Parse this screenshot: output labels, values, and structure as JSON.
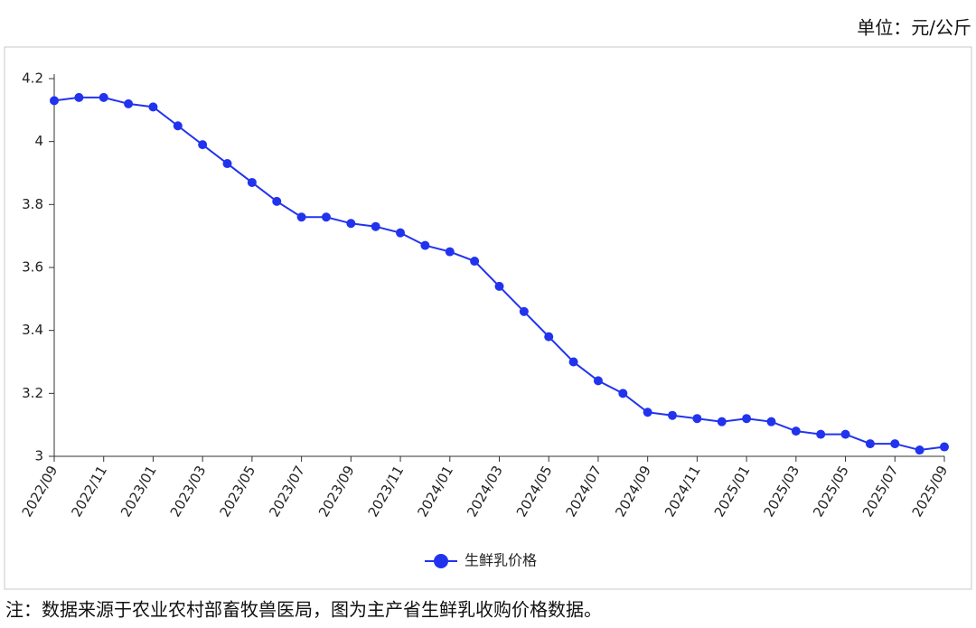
{
  "chart_data": {
    "type": "line",
    "unit": "单位：元/公斤",
    "note": "注：数据来源于农业农村部畜牧兽医局，图为主产省生鲜乳收购价格数据。",
    "categories": [
      "2022/09",
      null,
      "2022/11",
      null,
      "2023/01",
      null,
      "2023/03",
      null,
      "2023/05",
      null,
      "2023/07",
      null,
      "2023/09",
      null,
      "2023/11",
      null,
      "2024/01",
      null,
      "2024/03",
      null,
      "2024/05",
      null,
      "2024/07",
      null,
      "2024/09",
      null,
      "2024/11",
      null,
      "2025/01",
      null,
      "2025/03",
      null,
      "2025/05",
      null,
      "2025/07",
      null,
      "2025/09"
    ],
    "series": [
      {
        "name": "生鲜乳价格",
        "color": "#2233ee",
        "values": [
          4.13,
          4.14,
          4.14,
          4.12,
          4.11,
          4.05,
          3.99,
          3.93,
          3.87,
          3.81,
          3.76,
          3.76,
          3.74,
          3.73,
          3.71,
          3.67,
          3.65,
          3.62,
          3.54,
          3.46,
          3.38,
          3.3,
          3.24,
          3.2,
          3.14,
          3.13,
          3.12,
          3.11,
          3.12,
          3.11,
          3.08,
          3.07,
          3.07,
          3.04,
          3.04,
          3.02,
          3.03
        ]
      }
    ],
    "ylim": [
      3,
      4.2
    ],
    "yticks": [
      3,
      3.2,
      3.4,
      3.6,
      3.8,
      4,
      4.2
    ],
    "grid": false,
    "legend": "bottom"
  }
}
